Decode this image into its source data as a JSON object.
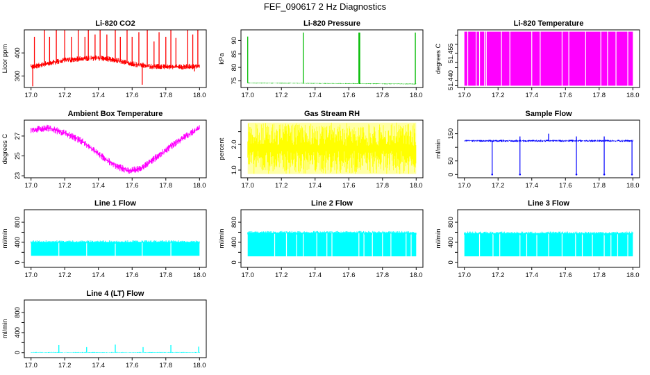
{
  "figure": {
    "title": "FEF_090617  2 Hz Diagnostics"
  },
  "chart_data": [
    {
      "id": "co2",
      "type": "line",
      "title": "Li-820 CO2",
      "xlabel": "",
      "ylabel": "Licor ppm",
      "xlim": [
        16.96,
        18.04
      ],
      "ylim": [
        250,
        500
      ],
      "xticks": [
        17.0,
        17.2,
        17.4,
        17.6,
        17.8,
        18.0
      ],
      "xtick_labels": [
        "17.0",
        "17.2",
        "17.4",
        "17.6",
        "17.8",
        "18.0"
      ],
      "yticks": [
        300,
        400
      ],
      "ytick_labels": [
        "300",
        "400"
      ],
      "color": "#ff0000",
      "grid": false,
      "series": [
        {
          "x": [
            17.0,
            17.04,
            17.1,
            17.2,
            17.3,
            17.4,
            17.48,
            17.56,
            17.62,
            17.7,
            17.8,
            17.9,
            18.0
          ],
          "y": [
            340,
            345,
            355,
            368,
            375,
            378,
            372,
            360,
            350,
            342,
            340,
            340,
            342
          ],
          "noise": 12,
          "spikes": [
            [
              17.01,
              255
            ],
            [
              17.02,
              470
            ],
            [
              17.08,
              500
            ],
            [
              17.11,
              470
            ],
            [
              17.15,
              500
            ],
            [
              17.2,
              500
            ],
            [
              17.24,
              470
            ],
            [
              17.28,
              500
            ],
            [
              17.32,
              470
            ],
            [
              17.34,
              500
            ],
            [
              17.38,
              480
            ],
            [
              17.41,
              500
            ],
            [
              17.45,
              480
            ],
            [
              17.5,
              500
            ],
            [
              17.53,
              470
            ],
            [
              17.57,
              500
            ],
            [
              17.6,
              470
            ],
            [
              17.64,
              490
            ],
            [
              17.66,
              262
            ],
            [
              17.69,
              500
            ],
            [
              17.73,
              450
            ],
            [
              17.76,
              490
            ],
            [
              17.8,
              470
            ],
            [
              17.83,
              500
            ],
            [
              17.86,
              465
            ],
            [
              17.93,
              500
            ],
            [
              17.96,
              480
            ],
            [
              17.97,
              320
            ],
            [
              17.99,
              500
            ]
          ]
        }
      ]
    },
    {
      "id": "pressure",
      "type": "line",
      "title": "Li-820 Pressure",
      "xlabel": "",
      "ylabel": "kPa",
      "xlim": [
        16.96,
        18.04
      ],
      "ylim": [
        72.5,
        94
      ],
      "xticks": [
        17.0,
        17.2,
        17.4,
        17.6,
        17.8,
        18.0
      ],
      "xtick_labels": [
        "17.0",
        "17.2",
        "17.4",
        "17.6",
        "17.8",
        "18.0"
      ],
      "yticks": [
        75,
        80,
        85,
        90
      ],
      "ytick_labels": [
        "75",
        "80",
        "85",
        "90"
      ],
      "color": "#00bb00",
      "grid": false,
      "series": [
        {
          "x": [
            17.0,
            18.0
          ],
          "y": [
            74.2,
            73.8
          ],
          "noise": 0.15,
          "spikes": [
            [
              17.0,
              91.5
            ],
            [
              17.33,
              93
            ],
            [
              17.66,
              93
            ],
            [
              17.665,
              93
            ],
            [
              17.995,
              93
            ]
          ]
        }
      ]
    },
    {
      "id": "temperature",
      "type": "area",
      "title": "Li-820 Temperature",
      "xlabel": "",
      "ylabel": "degrees C",
      "xlim": [
        16.96,
        18.04
      ],
      "ylim": [
        51.436,
        51.468
      ],
      "xticks": [
        17.0,
        17.2,
        17.4,
        17.6,
        17.8,
        18.0
      ],
      "xtick_labels": [
        "17.0",
        "17.2",
        "17.4",
        "17.6",
        "17.8",
        "18.0"
      ],
      "yticks": [
        51.44,
        51.455
      ],
      "ytick_labels": [
        "51.440",
        "51.455"
      ],
      "minor_yticks": [
        51.437,
        51.447,
        51.45,
        51.46,
        51.465
      ],
      "color": "#ff00ff",
      "grid": false,
      "series": [
        {
          "x": [
            17.0,
            18.0
          ],
          "y_low": 51.437,
          "y_high": 51.467,
          "gaps": [
            17.02,
            17.07,
            17.09,
            17.12,
            17.13,
            17.22,
            17.27,
            17.4,
            17.45,
            17.58,
            17.62,
            17.72,
            17.81,
            17.85,
            17.9,
            17.97
          ]
        }
      ]
    },
    {
      "id": "ambient",
      "type": "line",
      "title": "Ambient Box Temperature",
      "xlabel": "",
      "ylabel": "degrees C",
      "xlim": [
        16.96,
        18.04
      ],
      "ylim": [
        22.8,
        28.6
      ],
      "xticks": [
        17.0,
        17.2,
        17.4,
        17.6,
        17.8,
        18.0
      ],
      "xtick_labels": [
        "17.0",
        "17.2",
        "17.4",
        "17.6",
        "17.8",
        "18.0"
      ],
      "yticks": [
        23,
        25,
        27
      ],
      "ytick_labels": [
        "23",
        "25",
        "27"
      ],
      "color": "#ff00ff",
      "grid": false,
      "series": [
        {
          "x": [
            17.0,
            17.1,
            17.2,
            17.3,
            17.4,
            17.5,
            17.58,
            17.65,
            17.7,
            17.8,
            17.9,
            18.0
          ],
          "y": [
            27.6,
            27.8,
            27.3,
            26.5,
            25.2,
            24.0,
            23.5,
            23.7,
            24.3,
            25.6,
            26.8,
            27.8
          ],
          "noise": 0.35
        }
      ]
    },
    {
      "id": "rh",
      "type": "line",
      "title": "Gas Stream RH",
      "xlabel": "",
      "ylabel": "percent",
      "xlim": [
        16.96,
        18.04
      ],
      "ylim": [
        0.7,
        2.95
      ],
      "xticks": [
        17.0,
        17.2,
        17.4,
        17.6,
        17.8,
        18.0
      ],
      "xtick_labels": [
        "17.0",
        "17.2",
        "17.4",
        "17.6",
        "17.8",
        "18.0"
      ],
      "yticks": [
        1.0,
        1.5,
        2.0,
        2.5
      ],
      "ytick_labels": [
        "1.0",
        "",
        "2.0",
        ""
      ],
      "color": "#ffff00",
      "grid": false,
      "series": [
        {
          "x": [
            17.0,
            18.0
          ],
          "y_low": 0.85,
          "y_high": 2.85
        }
      ]
    },
    {
      "id": "sample",
      "type": "line",
      "title": "Sample Flow",
      "xlabel": "",
      "ylabel": "ml/min",
      "xlim": [
        16.96,
        18.04
      ],
      "ylim": [
        -12,
        200
      ],
      "xticks": [
        17.0,
        17.2,
        17.4,
        17.6,
        17.8,
        18.0
      ],
      "xtick_labels": [
        "17.0",
        "17.2",
        "17.4",
        "17.6",
        "17.8",
        "18.0"
      ],
      "yticks": [
        0,
        50,
        100,
        150
      ],
      "ytick_labels": [
        "0",
        "50",
        "",
        "150"
      ],
      "color": "#0000ff",
      "grid": false,
      "series": [
        {
          "x": [
            17.0,
            18.0
          ],
          "y": [
            124,
            124
          ],
          "noise": 4,
          "drops": [
            17.165,
            17.33,
            17.665,
            17.83,
            17.995
          ],
          "spikes": [
            [
              17.33,
              140
            ],
            [
              17.5,
              150
            ],
            [
              17.665,
              140
            ],
            [
              17.83,
              140
            ]
          ]
        }
      ]
    },
    {
      "id": "line1",
      "type": "line",
      "title": "Line 1 Flow",
      "xlabel": "",
      "ylabel": "ml/min",
      "xlim": [
        16.96,
        18.04
      ],
      "ylim": [
        -100,
        1050
      ],
      "xticks": [
        17.0,
        17.2,
        17.4,
        17.6,
        17.8,
        18.0
      ],
      "xtick_labels": [
        "17.0",
        "17.2",
        "17.4",
        "17.6",
        "17.8",
        "18.0"
      ],
      "yticks": [
        0,
        200,
        400,
        600,
        800
      ],
      "ytick_labels": [
        "0",
        "",
        "400",
        "",
        "800"
      ],
      "color": "#00ffff",
      "grid": false,
      "series": [
        {
          "x": [
            17.0,
            18.0
          ],
          "y_low": 130,
          "y_high": 405,
          "gaps": [
            17.165,
            17.33,
            17.5,
            17.66,
            17.83
          ]
        }
      ]
    },
    {
      "id": "line2",
      "type": "line",
      "title": "Line 2 Flow",
      "xlabel": "",
      "ylabel": "ml/min",
      "xlim": [
        16.96,
        18.04
      ],
      "ylim": [
        -100,
        1050
      ],
      "xticks": [
        17.0,
        17.2,
        17.4,
        17.6,
        17.8,
        18.0
      ],
      "xtick_labels": [
        "17.0",
        "17.2",
        "17.4",
        "17.6",
        "17.8",
        "18.0"
      ],
      "yticks": [
        0,
        200,
        400,
        600,
        800
      ],
      "ytick_labels": [
        "0",
        "",
        "400",
        "",
        "800"
      ],
      "color": "#00ffff",
      "grid": false,
      "series": [
        {
          "x": [
            17.0,
            18.0
          ],
          "y_low": 120,
          "y_high": 590,
          "gaps": [
            17.16,
            17.23,
            17.29,
            17.33,
            17.41,
            17.47,
            17.5,
            17.66,
            17.69,
            17.74,
            17.8,
            17.85,
            17.94,
            17.97
          ]
        }
      ]
    },
    {
      "id": "line3",
      "type": "line",
      "title": "Line 3 Flow",
      "xlabel": "",
      "ylabel": "ml/min",
      "xlim": [
        16.96,
        18.04
      ],
      "ylim": [
        -100,
        1050
      ],
      "xticks": [
        17.0,
        17.2,
        17.4,
        17.6,
        17.8,
        18.0
      ],
      "xtick_labels": [
        "17.0",
        "17.2",
        "17.4",
        "17.6",
        "17.8",
        "18.0"
      ],
      "yticks": [
        0,
        200,
        400,
        600,
        800
      ],
      "ytick_labels": [
        "0",
        "",
        "400",
        "",
        "800"
      ],
      "color": "#00ffff",
      "grid": false,
      "series": [
        {
          "x": [
            17.0,
            18.0
          ],
          "y_low": 120,
          "y_high": 580,
          "gaps": [
            17.09,
            17.17,
            17.21,
            17.33,
            17.37,
            17.43,
            17.5,
            17.58,
            17.66,
            17.7,
            17.76,
            17.83,
            17.87,
            17.91,
            17.97
          ]
        }
      ]
    },
    {
      "id": "line4",
      "type": "line",
      "title": "Line 4 (LT) Flow",
      "xlabel": "",
      "ylabel": "ml/min",
      "xlim": [
        16.96,
        18.04
      ],
      "ylim": [
        -100,
        1050
      ],
      "xticks": [
        17.0,
        17.2,
        17.4,
        17.6,
        17.8,
        18.0
      ],
      "xtick_labels": [
        "17.0",
        "17.2",
        "17.4",
        "17.6",
        "17.8",
        "18.0"
      ],
      "yticks": [
        0,
        200,
        400,
        600,
        800
      ],
      "ytick_labels": [
        "0",
        "",
        "400",
        "",
        "800"
      ],
      "color": "#00ffff",
      "grid": false,
      "series": [
        {
          "x": [
            17.0,
            18.0
          ],
          "y": [
            5,
            5
          ],
          "noise": 8,
          "spikes": [
            [
              17.165,
              150
            ],
            [
              17.33,
              110
            ],
            [
              17.5,
              160
            ],
            [
              17.665,
              110
            ],
            [
              17.83,
              150
            ],
            [
              17.995,
              120
            ]
          ]
        }
      ]
    }
  ]
}
